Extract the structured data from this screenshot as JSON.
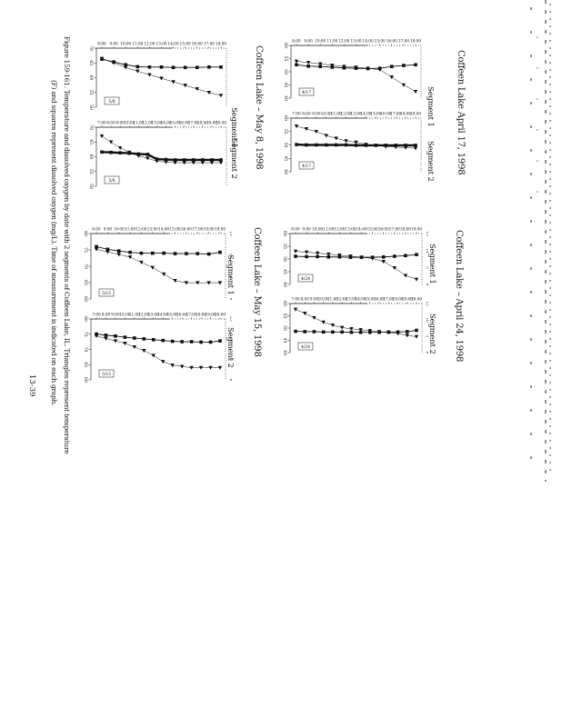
{
  "page": {
    "number": "13-39"
  },
  "caption": {
    "line1": "Figure 159-161.  Temperature and dissolved oxygen by date with 2 segments of Coffeen Lake, IL.  Triangles represent temperature",
    "line2": "(F) and squares represent dissolved oxygen (mg/L).  Time of measurement is indicated on each graph."
  },
  "groups": [
    {
      "title": "Coffeen Lake   April 17, 1998",
      "segment1_label": "Segment 1",
      "segment2_label": "Segment 2"
    },
    {
      "title": "Coffeen Lake – April 24, 1998",
      "segment1_label": "Segment 1",
      "segment2_label": "Segment 2"
    },
    {
      "title": "Coffeen Lake – May 8, 1998",
      "segment1_label": "Segment 1",
      "segment2_label": "Segment 2"
    },
    {
      "title": "Coffeen Lake – May 15, 1998",
      "segment1_label": "Segment 1",
      "segment2_label": "Segment 2"
    }
  ],
  "chart_data": [
    {
      "id": "april17-segment1",
      "group": "Coffeen Lake   April 17, 1998",
      "segment": "Segment 1",
      "type": "line",
      "categories": [
        "8:00",
        "9:00",
        "10:00",
        "11:00",
        "12:00",
        "13:00",
        "14:00",
        "15:00",
        "16:00",
        "17:00",
        "18:00"
      ],
      "series": [
        {
          "name": "Temperature (F)",
          "marker": "triangle",
          "ylim": [
            40,
            60
          ],
          "thick": false,
          "values": [
            54,
            53.5,
            53,
            52.5,
            52,
            51.7,
            51.3,
            50.8,
            48,
            45,
            42.5
          ]
        },
        {
          "name": "Dissolved oxygen (mg/L)",
          "marker": "square",
          "ylim": [
            0,
            15
          ],
          "thick": false,
          "values": [
            9.5,
            9.1,
            9,
            8.8,
            8.6,
            8.5,
            8.4,
            8.5,
            9,
            9.3,
            9.5
          ]
        }
      ],
      "y_axis_labels": [
        "60",
        "55",
        "50",
        "45",
        "40"
      ],
      "right_axis_labels": [],
      "date_label": "4/17"
    },
    {
      "id": "april17-segment2",
      "group": "Coffeen Lake   April 17, 1998",
      "segment": "Segment 2",
      "type": "line",
      "categories": [
        "7:00",
        "8:00",
        "9:00",
        "10:00",
        "11:00",
        "12:00",
        "13:00",
        "14:00",
        "15:00",
        "16:00",
        "17:00",
        "18:00",
        "19:00"
      ],
      "series": [
        {
          "name": "Temperature (F)",
          "marker": "triangle",
          "ylim": [
            40,
            60
          ],
          "thick": false,
          "values": [
            57,
            56,
            55,
            53.5,
            52.5,
            51.5,
            51,
            50.2,
            49.8,
            49.4,
            49.2,
            49,
            48.8
          ]
        },
        {
          "name": "Dissolved oxygen (mg/L)",
          "marker": "square",
          "ylim": [
            0,
            15
          ],
          "thick": true,
          "values": [
            7.6,
            7.5,
            7.5,
            7.5,
            7.5,
            7.5,
            7.4,
            7.4,
            7.4,
            7.4,
            7.4,
            7.4,
            7.4
          ]
        }
      ],
      "y_axis_labels": [
        "60",
        "55",
        "50",
        "45",
        "40"
      ],
      "right_axis_labels": [],
      "date_label": "4/17"
    },
    {
      "id": "april24-segment1",
      "group": "Coffeen Lake – April 24, 1998",
      "segment": "Segment 1",
      "type": "line",
      "categories": [
        "8:00",
        "9:00",
        "10:00",
        "11:00",
        "12:00",
        "13:00",
        "14:00",
        "15:00",
        "16:00",
        "17:00",
        "18:00",
        "19:00"
      ],
      "series": [
        {
          "name": "Temperature (F)",
          "marker": "triangle",
          "ylim": [
            40,
            60
          ],
          "thick": false,
          "values": [
            53,
            52.7,
            52.3,
            51.9,
            51.5,
            51.1,
            50.7,
            50.2,
            49,
            46.5,
            43.5,
            42
          ]
        },
        {
          "name": "Dissolved oxygen (mg/L)",
          "marker": "square",
          "ylim": [
            0,
            15
          ],
          "thick": false,
          "values": [
            8.3,
            8.2,
            8.2,
            8.1,
            8.1,
            8,
            8,
            8,
            8.1,
            8.3,
            8.5,
            8.8
          ]
        }
      ],
      "y_axis_labels": [
        "60",
        "55",
        "50",
        "45",
        "40"
      ],
      "right_axis_labels": [
        "15",
        "10",
        "5",
        "0"
      ],
      "date_label": "4/24"
    },
    {
      "id": "april24-segment2",
      "group": "Coffeen Lake – April 24, 1998",
      "segment": "Segment 2",
      "type": "line",
      "categories": [
        "7:00",
        "8:00",
        "9:00",
        "10:00",
        "11:00",
        "12:00",
        "13:00",
        "14:00",
        "15:00",
        "16:00",
        "17:00",
        "18:00",
        "19:00",
        "20:00"
      ],
      "series": [
        {
          "name": "Temperature (F)",
          "marker": "triangle",
          "ylim": [
            40,
            60
          ],
          "thick": false,
          "values": [
            57.6,
            56,
            54.2,
            52.4,
            51.2,
            50.2,
            49.7,
            49.3,
            48.9,
            48.5,
            48.1,
            47.8,
            47,
            46.5
          ]
        },
        {
          "name": "Dissolved oxygen (mg/L)",
          "marker": "square",
          "ylim": [
            0,
            15
          ],
          "thick": false,
          "values": [
            6.5,
            6.4,
            6.4,
            6.3,
            6.3,
            6.3,
            6.2,
            6.2,
            6.2,
            6.2,
            6.3,
            6.3,
            6.4,
            6.8
          ]
        }
      ],
      "y_axis_labels": [
        "60",
        "55",
        "50",
        "45",
        "40"
      ],
      "right_axis_labels": [
        "15",
        "10",
        "5",
        "0"
      ],
      "date_label": "4/24"
    },
    {
      "id": "may8-segment1",
      "group": "Coffeen Lake – May 8, 1998",
      "segment": "Segment 1",
      "type": "line",
      "categories": [
        "8:00",
        "9:00",
        "10:00",
        "11:00",
        "12:00",
        "13:00",
        "14:00",
        "15:00",
        "16:00",
        "17:00",
        "18:00"
      ],
      "series": [
        {
          "name": "Temperature (F)",
          "marker": "triangle",
          "ylim": [
            50,
            70
          ],
          "thick": false,
          "values": [
            66.5,
            65,
            63.5,
            62.2,
            61,
            59.8,
            58.6,
            57.4,
            56.2,
            55,
            54
          ]
        },
        {
          "name": "Dissolved oxygen (mg/L)",
          "marker": "square",
          "ylim": [
            0,
            15
          ],
          "thick": false,
          "values": [
            12.2,
            11.5,
            10.8,
            10.3,
            10.2,
            10.2,
            10.1,
            10.1,
            10.1,
            10.2,
            10.2
          ]
        }
      ],
      "y_axis_labels": [
        "70",
        "65",
        "60",
        "55",
        "50"
      ],
      "right_axis_labels": [],
      "date_label": "5/8"
    },
    {
      "id": "may8-segment2",
      "group": "Coffeen Lake – May 8, 1998",
      "segment": "Segment 2",
      "type": "line",
      "categories": [
        "7:00",
        "8:00",
        "9:00",
        "10:00",
        "11:00",
        "12:00",
        "13:00",
        "14:00",
        "15:00",
        "16:00",
        "17:00",
        "18:00",
        "19:00",
        "20:00"
      ],
      "series": [
        {
          "name": "Temperature (F)",
          "marker": "triangle",
          "ylim": [
            50,
            70
          ],
          "thick": false,
          "values": [
            67,
            65,
            63,
            61.5,
            60.3,
            59.5,
            58.5,
            58.2,
            58,
            58,
            58,
            58,
            58,
            58
          ]
        },
        {
          "name": "Dissolved oxygen (mg/L)",
          "marker": "square",
          "ylim": [
            0,
            15
          ],
          "thick": true,
          "values": [
            8.7,
            8.6,
            8.5,
            8.4,
            8.2,
            8.1,
            6.9,
            6.8,
            6.7,
            6.7,
            6.7,
            6.7,
            6.7,
            6.7
          ]
        }
      ],
      "y_axis_labels": [
        "70",
        "65",
        "60",
        "55",
        "50"
      ],
      "right_axis_labels": [],
      "date_label": "5/8"
    },
    {
      "id": "may15-segment1",
      "group": "Coffeen Lake – May 15, 1998",
      "segment": "Segment 1",
      "type": "line",
      "categories": [
        "8:00",
        "9:00",
        "10:00",
        "11:00",
        "12:00",
        "13:00",
        "14:00",
        "15:00",
        "16:00",
        "17:00",
        "18:00",
        "19:00"
      ],
      "series": [
        {
          "name": "Temperature (F)",
          "marker": "triangle",
          "ylim": [
            55,
            80
          ],
          "thick": false,
          "values": [
            74,
            73,
            72,
            71,
            69,
            67,
            64.5,
            62,
            61.2,
            61.2,
            61.2,
            61.2
          ]
        },
        {
          "name": "Dissolved oxygen (mg/L)",
          "marker": "square",
          "ylim": [
            0,
            15
          ],
          "thick": false,
          "values": [
            12,
            11.4,
            11,
            10.7,
            10.5,
            10.5,
            10.5,
            10.4,
            10.4,
            10.4,
            10.3,
            10.7
          ]
        }
      ],
      "y_axis_labels": [
        "80",
        "75",
        "70",
        "65",
        "60"
      ],
      "right_axis_labels": [
        "15",
        "10",
        "5",
        "0"
      ],
      "date_label": "5/15"
    },
    {
      "id": "may15-segment2",
      "group": "Coffeen Lake – May 15, 1998",
      "segment": "Segment 2",
      "type": "line",
      "categories": [
        "7:00",
        "8:00",
        "9:00",
        "10:00",
        "11:00",
        "12:00",
        "13:00",
        "14:00",
        "15:00",
        "16:00",
        "17:00",
        "18:00",
        "19:00",
        "20:00"
      ],
      "series": [
        {
          "name": "Temperature (F)",
          "marker": "triangle",
          "ylim": [
            55,
            80
          ],
          "thick": false,
          "values": [
            73,
            72,
            71,
            70,
            68.5,
            67,
            65,
            62.5,
            61,
            60.5,
            60,
            60,
            60,
            60
          ]
        },
        {
          "name": "Dissolved oxygen (mg/L)",
          "marker": "square",
          "ylim": [
            0,
            15
          ],
          "thick": false,
          "values": [
            11.3,
            11,
            10.8,
            10.5,
            10.3,
            10.1,
            9.9,
            9.7,
            9.5,
            9.4,
            9.4,
            9.3,
            9.3,
            9.6
          ]
        }
      ],
      "y_axis_labels": [
        "80",
        "75",
        "70",
        "65",
        "60"
      ],
      "right_axis_labels": [
        "15",
        "10",
        "5",
        "0"
      ],
      "date_label": "5/15"
    }
  ]
}
